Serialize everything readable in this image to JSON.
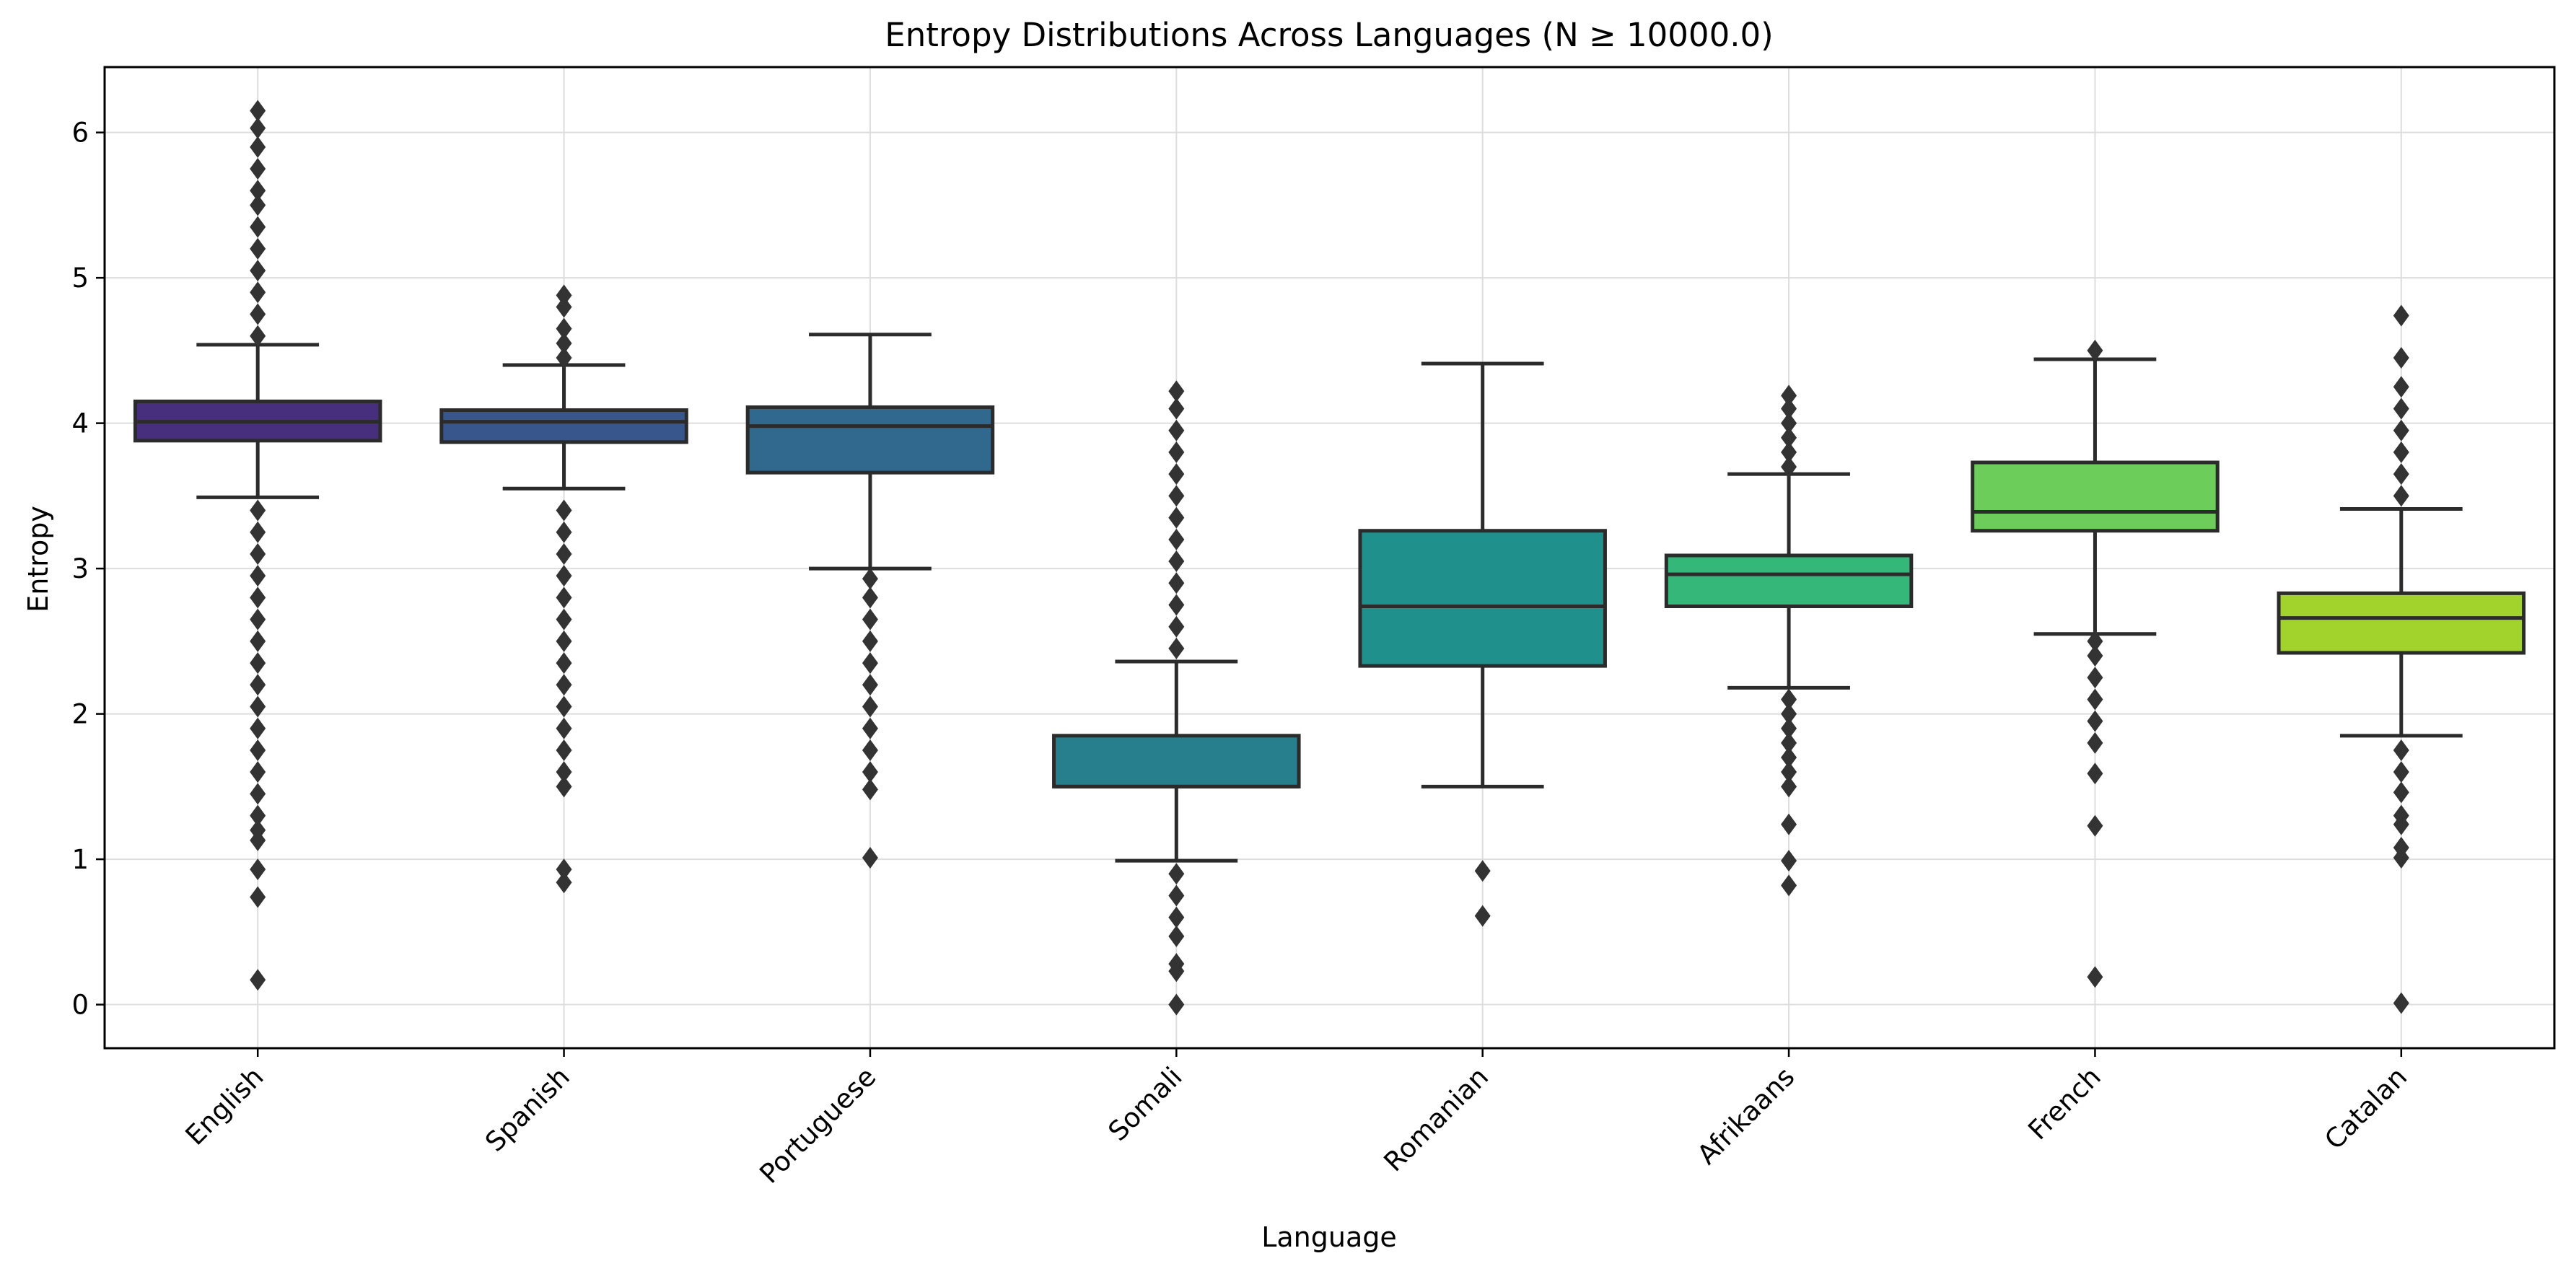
{
  "chart_data": {
    "type": "box",
    "title": "Entropy Distributions Across Languages (N ≥ 10000.0)",
    "xlabel": "Language",
    "ylabel": "Entropy",
    "ylim": [
      -0.3,
      6.45
    ],
    "yticks": [
      "0",
      "1",
      "2",
      "3",
      "4",
      "5",
      "6"
    ],
    "grid": true,
    "legend": "none",
    "categories": [
      "English",
      "Spanish",
      "Portuguese",
      "Somali",
      "Romanian",
      "Afrikaans",
      "French",
      "Catalan"
    ],
    "boxes": [
      {
        "category": "English",
        "color": "#472f7d",
        "whisker_low": 3.49,
        "q1": 3.88,
        "median": 4.01,
        "q3": 4.15,
        "whisker_high": 4.54,
        "outliers": [
          0.17,
          0.74,
          0.93,
          1.13,
          1.2,
          1.3,
          1.45,
          1.6,
          1.75,
          1.9,
          2.05,
          2.2,
          2.35,
          2.5,
          2.65,
          2.8,
          2.95,
          3.1,
          3.25,
          3.4,
          4.6,
          4.75,
          4.9,
          5.05,
          5.2,
          5.35,
          5.5,
          5.6,
          5.75,
          5.9,
          6.03,
          6.15
        ]
      },
      {
        "category": "Spanish",
        "color": "#39568c",
        "whisker_low": 3.55,
        "q1": 3.87,
        "median": 4.01,
        "q3": 4.09,
        "whisker_high": 4.4,
        "outliers": [
          0.84,
          0.93,
          1.5,
          1.6,
          1.75,
          1.9,
          2.05,
          2.2,
          2.35,
          2.5,
          2.65,
          2.8,
          2.95,
          3.1,
          3.25,
          3.4,
          4.45,
          4.55,
          4.65,
          4.8,
          4.88
        ]
      },
      {
        "category": "Portuguese",
        "color": "#31688e",
        "whisker_low": 3.0,
        "q1": 3.66,
        "median": 3.98,
        "q3": 4.11,
        "whisker_high": 4.61,
        "outliers": [
          1.01,
          1.48,
          1.6,
          1.75,
          1.9,
          2.05,
          2.2,
          2.35,
          2.5,
          2.65,
          2.8,
          2.93
        ]
      },
      {
        "category": "Somali",
        "color": "#277f8e",
        "whisker_low": 0.99,
        "q1": 1.5,
        "median": 1.5,
        "q3": 1.85,
        "whisker_high": 2.36,
        "outliers": [
          0.0,
          0.23,
          0.28,
          0.47,
          0.6,
          0.75,
          0.9,
          2.45,
          2.6,
          2.75,
          2.9,
          3.05,
          3.2,
          3.35,
          3.5,
          3.65,
          3.8,
          3.95,
          4.1,
          4.22
        ]
      },
      {
        "category": "Romanian",
        "color": "#20908d",
        "whisker_low": 1.5,
        "q1": 2.33,
        "median": 2.74,
        "q3": 3.26,
        "whisker_high": 4.41,
        "outliers": [
          0.61,
          0.92
        ]
      },
      {
        "category": "Afrikaans",
        "color": "#35b779",
        "whisker_low": 2.18,
        "q1": 2.74,
        "median": 2.96,
        "q3": 3.09,
        "whisker_high": 3.65,
        "outliers": [
          0.82,
          0.99,
          1.24,
          1.5,
          1.6,
          1.7,
          1.8,
          1.9,
          2.0,
          2.1,
          3.7,
          3.8,
          3.9,
          4.0,
          4.1,
          4.19
        ]
      },
      {
        "category": "French",
        "color": "#6ccd5a",
        "whisker_low": 2.55,
        "q1": 3.26,
        "median": 3.39,
        "q3": 3.73,
        "whisker_high": 4.44,
        "outliers": [
          0.19,
          1.23,
          1.59,
          1.8,
          1.95,
          2.1,
          2.25,
          2.4,
          2.5,
          4.5
        ]
      },
      {
        "category": "Catalan",
        "color": "#a2d32c",
        "whisker_low": 1.85,
        "q1": 2.42,
        "median": 2.66,
        "q3": 2.83,
        "whisker_high": 3.41,
        "outliers": [
          0.01,
          1.01,
          1.08,
          1.24,
          1.3,
          1.46,
          1.6,
          1.75,
          3.5,
          3.65,
          3.8,
          3.95,
          4.1,
          4.25,
          4.45,
          4.74
        ]
      }
    ]
  }
}
